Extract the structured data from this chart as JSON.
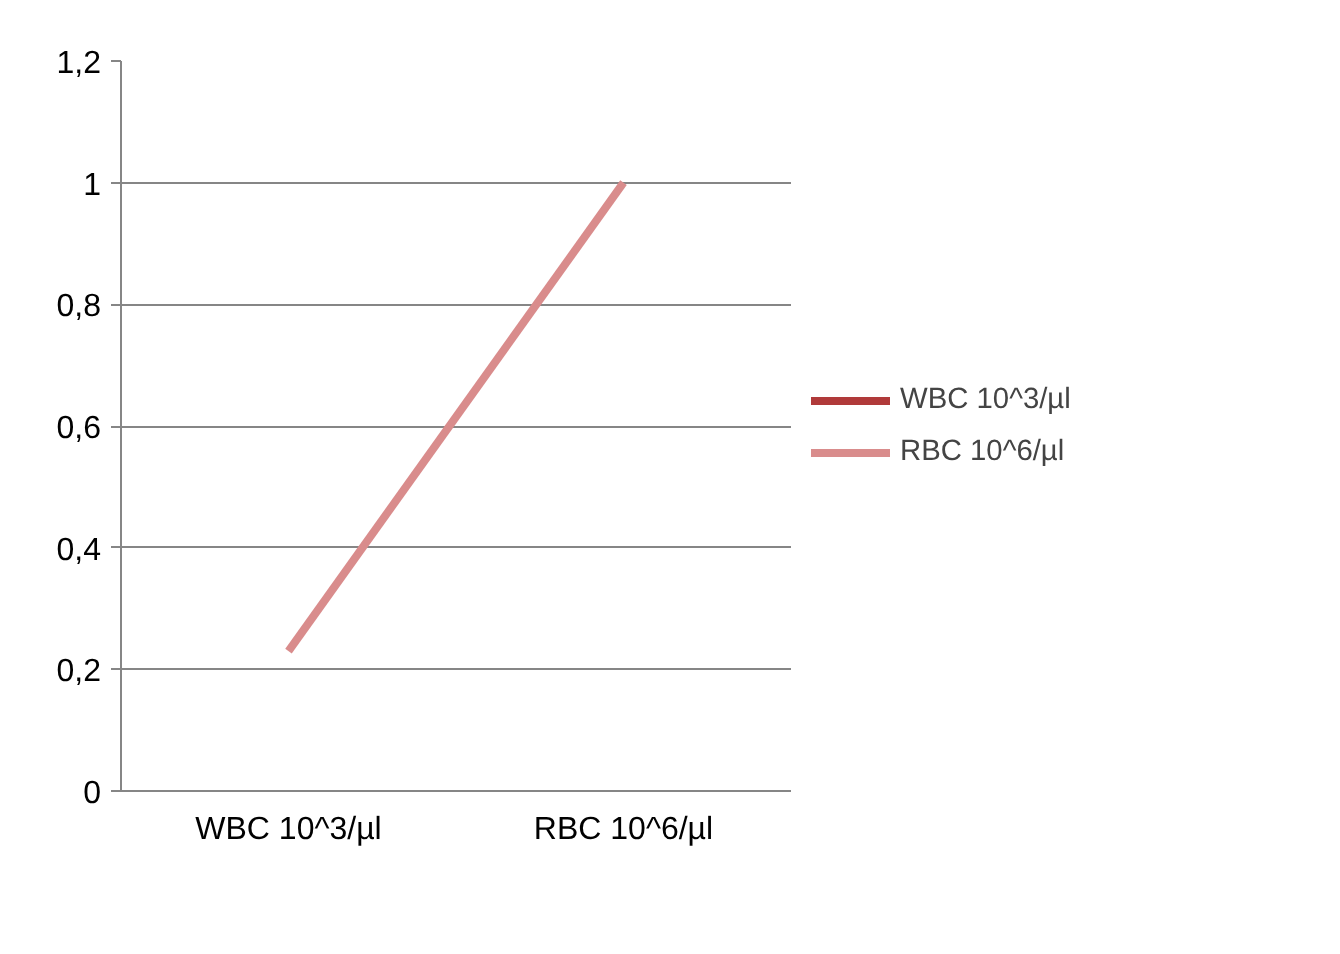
{
  "chart_data": {
    "type": "line",
    "categories": [
      "WBC 10^3/µl",
      "RBC 10^6/µl"
    ],
    "series": [
      {
        "name": "WBC 10^3/µl",
        "color": "#b03a3a",
        "values": [
          null,
          null
        ]
      },
      {
        "name": "RBC 10^6/µl",
        "color": "#d98c8c",
        "values": [
          0.23,
          1.0
        ]
      }
    ],
    "ylim": [
      0,
      1.2
    ],
    "yticks": [
      0,
      {
        "value": 0.2,
        "label": "0,2"
      },
      {
        "value": 0.4,
        "label": "0,4"
      },
      {
        "value": 0.6,
        "label": "0,6"
      },
      {
        "value": 0.8,
        "label": "0,8"
      },
      1,
      {
        "value": 1.2,
        "label": "1,2"
      }
    ],
    "grid": "y",
    "legend": "right",
    "marker": "none",
    "line_style": "solid"
  }
}
